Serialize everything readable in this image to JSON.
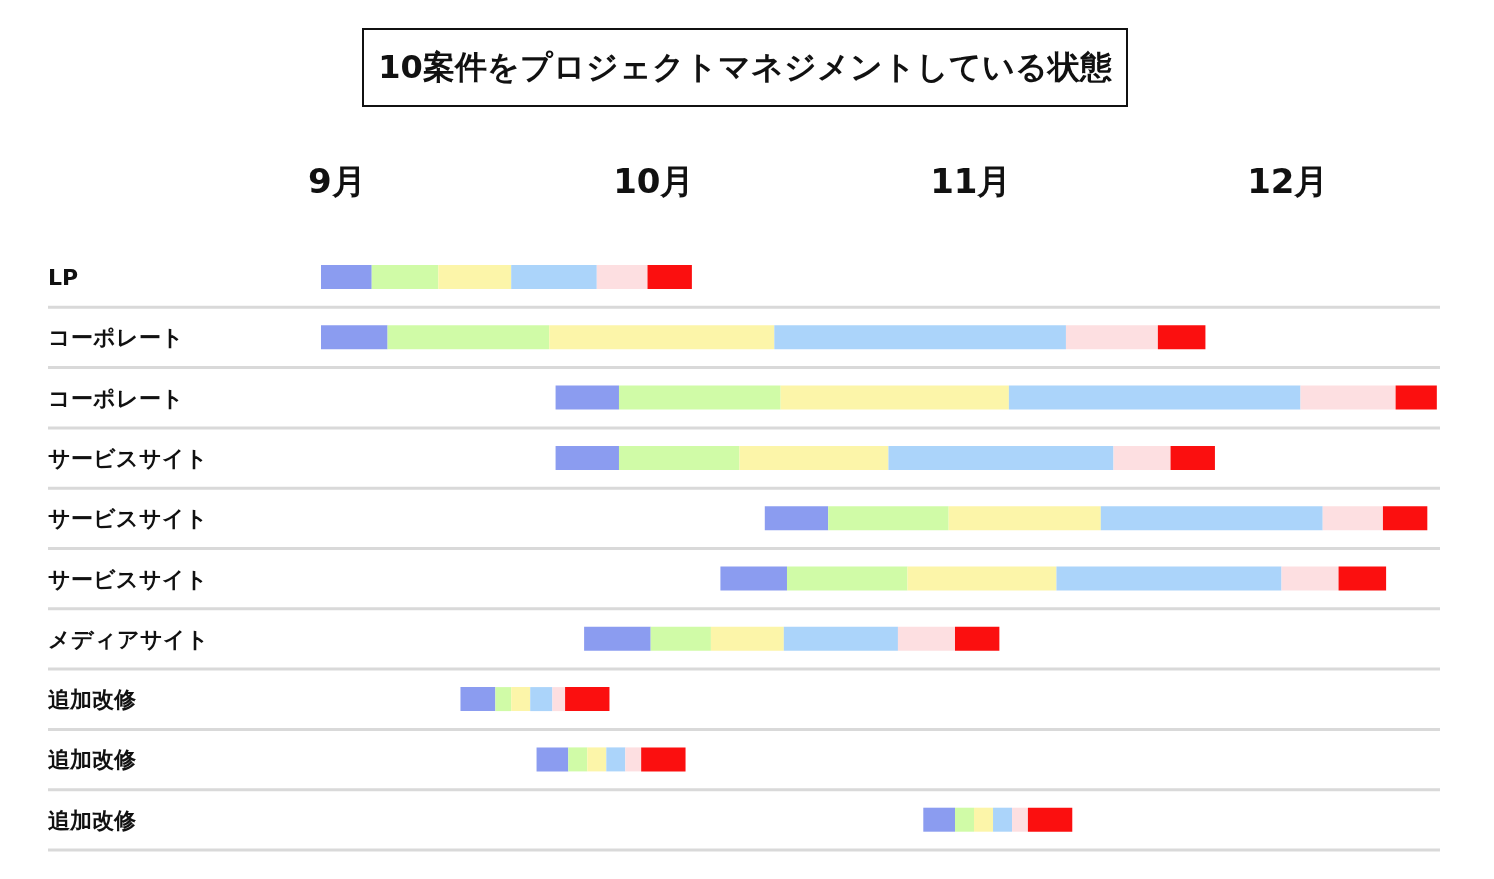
{
  "chart_data": {
    "type": "bar",
    "orientation": "horizontal",
    "title": "10案件をプロジェクトマネジメントしている状態",
    "categories": [
      "LP",
      "コーポレート",
      "コーポレート",
      "サービスサイト",
      "サービスサイト",
      "サービスサイト",
      "メディアサイト",
      "追加改修",
      "追加改修",
      "追加改修"
    ],
    "series": [
      {
        "color": "#8b9cf0",
        "base": [
          8.95,
          8.95,
          9.69,
          9.69,
          10.35,
          10.21,
          9.78,
          9.39,
          9.63,
          10.85
        ],
        "values": [
          0.16,
          0.21,
          0.2,
          0.2,
          0.2,
          0.21,
          0.21,
          0.11,
          0.1,
          0.1
        ]
      },
      {
        "color": "#d0fba7",
        "base": [
          9.11,
          9.16,
          9.89,
          9.89,
          10.55,
          10.42,
          9.99,
          9.5,
          9.73,
          10.95
        ],
        "values": [
          0.21,
          0.51,
          0.51,
          0.38,
          0.38,
          0.38,
          0.19,
          0.05,
          0.06,
          0.06
        ]
      },
      {
        "color": "#fcf5a9",
        "base": [
          9.32,
          9.67,
          10.4,
          10.27,
          10.93,
          10.8,
          10.18,
          9.55,
          9.79,
          11.01
        ],
        "values": [
          0.23,
          0.71,
          0.72,
          0.47,
          0.48,
          0.47,
          0.23,
          0.06,
          0.06,
          0.06
        ]
      },
      {
        "color": "#abd4fa",
        "base": [
          9.55,
          10.38,
          11.12,
          10.74,
          11.41,
          11.27,
          10.41,
          9.61,
          9.85,
          11.07
        ],
        "values": [
          0.27,
          0.92,
          0.92,
          0.71,
          0.7,
          0.71,
          0.36,
          0.07,
          0.06,
          0.06
        ]
      },
      {
        "color": "#fddfe1",
        "base": [
          9.82,
          11.3,
          12.04,
          11.45,
          12.11,
          11.98,
          10.77,
          9.68,
          9.91,
          11.13
        ],
        "values": [
          0.16,
          0.29,
          0.3,
          0.18,
          0.19,
          0.18,
          0.18,
          0.04,
          0.05,
          0.05
        ]
      },
      {
        "color": "#fb0f0f",
        "base": [
          9.98,
          11.59,
          12.34,
          11.63,
          12.3,
          12.16,
          10.95,
          9.72,
          9.96,
          11.18
        ],
        "values": [
          0.14,
          0.15,
          0.13,
          0.14,
          0.14,
          0.15,
          0.14,
          0.14,
          0.14,
          0.14
        ]
      }
    ],
    "xlim": [
      8.95,
      12.48
    ],
    "xticks": [
      {
        "value": 9,
        "label": "9月"
      },
      {
        "value": 10,
        "label": "10月"
      },
      {
        "value": 11,
        "label": "11月"
      },
      {
        "value": 12,
        "label": "12月"
      }
    ],
    "grid": "y"
  }
}
